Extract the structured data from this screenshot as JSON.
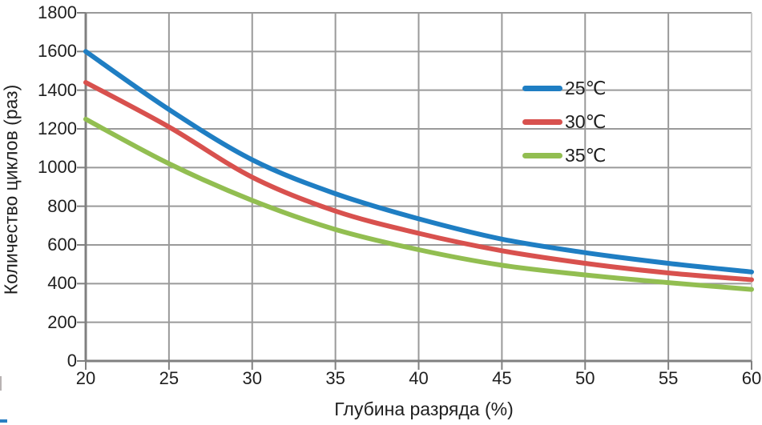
{
  "chart_data": {
    "type": "line",
    "title": "",
    "xlabel": "Глубина разряда (%)",
    "ylabel": "Количество циклов (раз)",
    "x": [
      20,
      25,
      30,
      35,
      40,
      45,
      50,
      55,
      60
    ],
    "xticks": [
      20,
      25,
      30,
      35,
      40,
      45,
      50,
      55,
      60
    ],
    "yticks": [
      0,
      200,
      400,
      600,
      800,
      1000,
      1200,
      1400,
      1600,
      1800
    ],
    "xlim": [
      20,
      60
    ],
    "ylim": [
      0,
      1800
    ],
    "grid": true,
    "legend_position": "inside-upper-right",
    "series": [
      {
        "name": "25℃",
        "color": "#1f7ec3",
        "values": [
          1600,
          1300,
          1040,
          865,
          735,
          630,
          560,
          505,
          460
        ]
      },
      {
        "name": "30℃",
        "color": "#d8514e",
        "values": [
          1440,
          1210,
          950,
          775,
          660,
          570,
          505,
          455,
          420
        ]
      },
      {
        "name": "35℃",
        "color": "#92be51",
        "values": [
          1250,
          1020,
          830,
          680,
          575,
          495,
          445,
          405,
          370
        ]
      }
    ],
    "colors": {
      "gridline": "#9a9a9a",
      "axis": "#808080",
      "right_border": "#c9c9c9",
      "text": "#1f1f1f"
    }
  }
}
